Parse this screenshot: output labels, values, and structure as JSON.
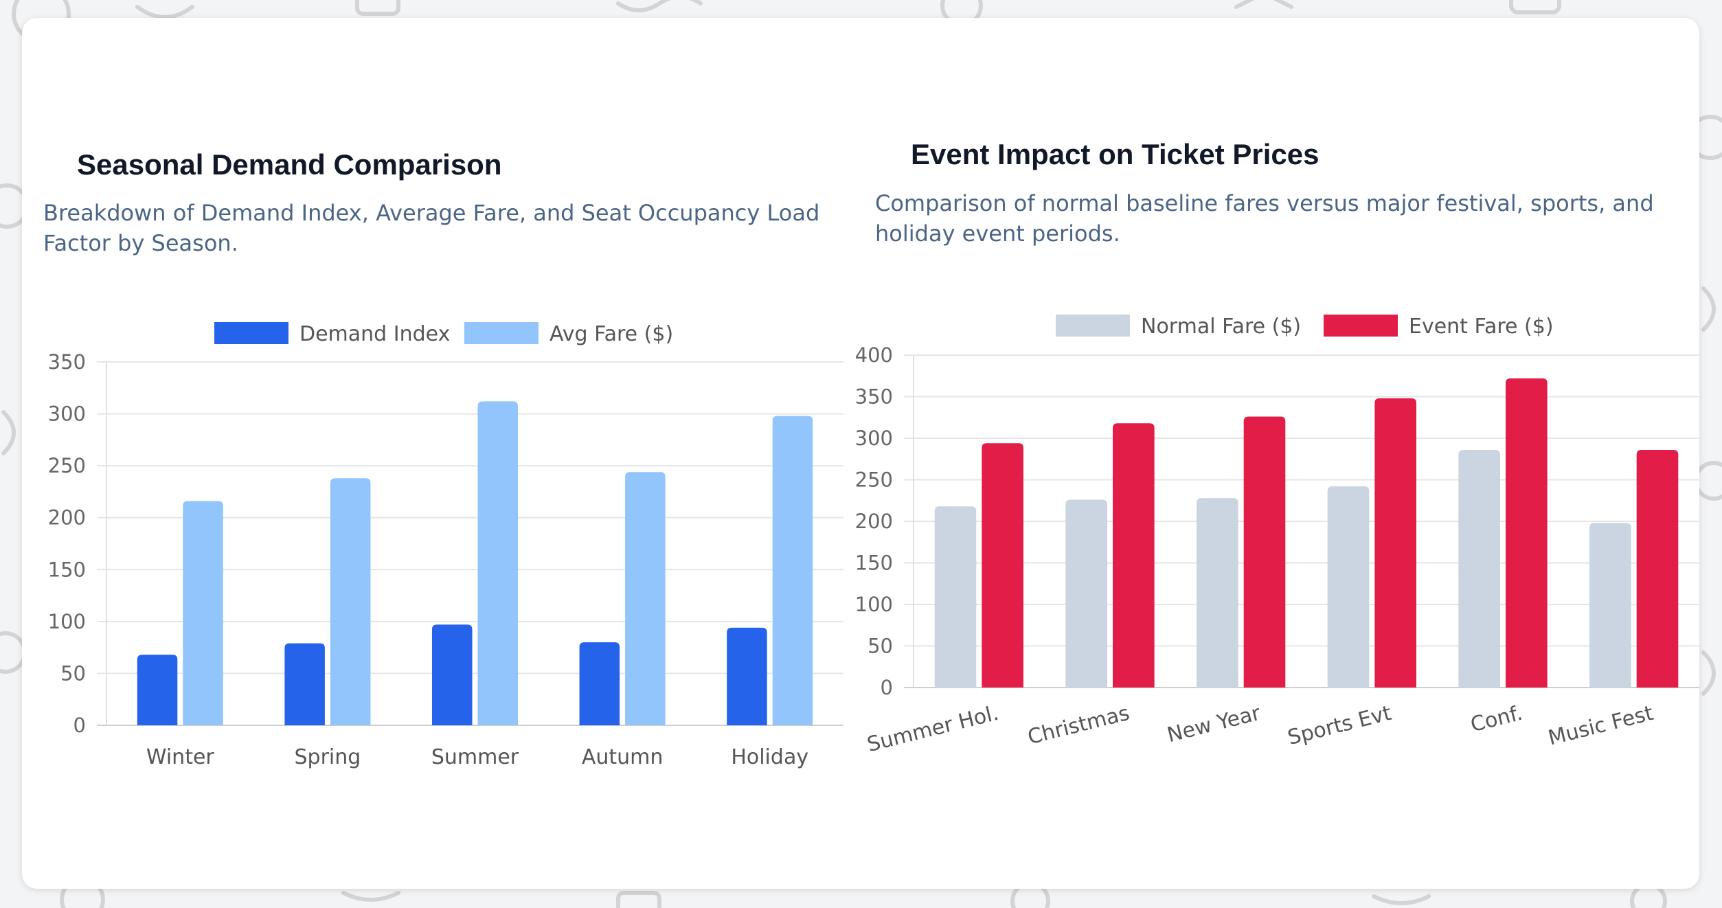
{
  "charts_page": {
    "left": {
      "title": "Seasonal Demand Comparison",
      "subtitle": "Breakdown of Demand Index, Average Fare, and Seat Occupancy Load Factor by Season."
    },
    "right": {
      "title": "Event Impact on Ticket Prices",
      "subtitle": "Comparison of normal baseline fares versus major festival, sports, and holiday event periods."
    }
  },
  "chart_data": [
    {
      "type": "bar",
      "title": "Seasonal Demand Comparison",
      "categories": [
        "Winter",
        "Spring",
        "Summer",
        "Autumn",
        "Holiday"
      ],
      "series": [
        {
          "name": "Demand Index",
          "values": [
            68,
            79,
            97,
            80,
            94
          ],
          "color": "#2563eb"
        },
        {
          "name": "Avg Fare ($)",
          "values": [
            216,
            238,
            312,
            244,
            298
          ],
          "color": "#93c5fd"
        }
      ],
      "ylim": [
        0,
        350
      ],
      "yticks": [
        0,
        50,
        100,
        150,
        200,
        250,
        300,
        350
      ],
      "grid": true,
      "legend": "top-center"
    },
    {
      "type": "bar",
      "title": "Event Impact on Ticket Prices",
      "categories": [
        "Summer Hol.",
        "Christmas",
        "New Year",
        "Sports Evt",
        "Conf.",
        "Music Fest"
      ],
      "series": [
        {
          "name": "Normal Fare ($)",
          "values": [
            218,
            226,
            228,
            242,
            286,
            198
          ],
          "color": "#cbd5e1"
        },
        {
          "name": "Event Fare ($)",
          "values": [
            294,
            318,
            326,
            348,
            372,
            286
          ],
          "color": "#e11d48"
        }
      ],
      "ylim": [
        0,
        400
      ],
      "yticks": [
        0,
        50,
        100,
        150,
        200,
        250,
        300,
        350,
        400
      ],
      "grid": true,
      "legend": "top-center"
    }
  ]
}
